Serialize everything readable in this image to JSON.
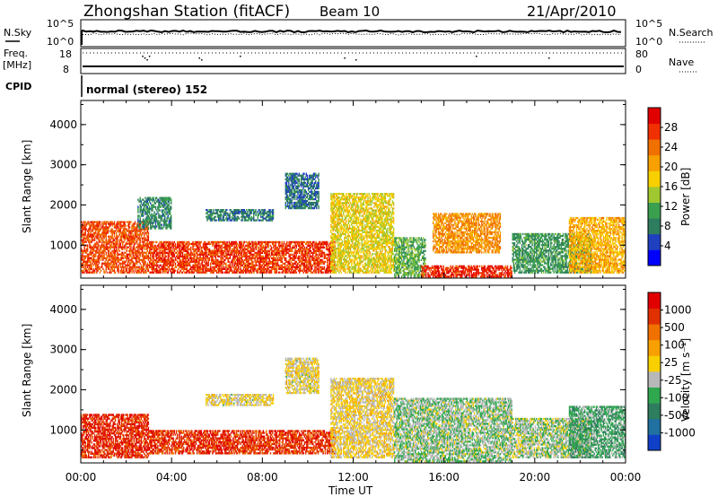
{
  "header": {
    "station": "Zhongshan Station (fitACF)",
    "beam": "Beam 10",
    "date": "21/Apr/2010"
  },
  "top_panels": {
    "nsky_label": "N.Sky",
    "nsky_ticks": [
      "10^5",
      "10^0"
    ],
    "nsearch_label": "N.Search",
    "nsearch_ticks": [
      "10^5",
      "10^0"
    ],
    "freq_label": "Freq.",
    "freq_unit": "[MHz]",
    "freq_ticks": [
      "18",
      "8"
    ],
    "nave_label": "Nave",
    "nave_ticks": [
      "80",
      "0"
    ],
    "cpid_label": "CPID",
    "cpid_text": "normal (stereo) 152"
  },
  "colors": {
    "power_scale": [
      "#0000ff",
      "#2040c0",
      "#2e7d5e",
      "#3aa050",
      "#a0c830",
      "#f8d000",
      "#f8a000",
      "#f07000",
      "#f03000",
      "#e00000"
    ],
    "velocity_scale": [
      "#1040c8",
      "#2070a0",
      "#2e7d5e",
      "#30a850",
      "#b8b8b8",
      "#f8d000",
      "#f8a000",
      "#f07000",
      "#e03000",
      "#e00000"
    ]
  },
  "chart_data": [
    {
      "type": "heatmap",
      "name": "power",
      "ylabel": "Slant Range [km]",
      "yticks": [
        "1000",
        "2000",
        "3000",
        "4000"
      ],
      "ylim": [
        180,
        4600
      ],
      "xlim": [
        0,
        24
      ],
      "colorbar_label": "Power [dB]",
      "colorbar_ticks": [
        "4",
        "8",
        "12",
        "16",
        "20",
        "24",
        "28"
      ],
      "colorbar_range": [
        0,
        32
      ],
      "regions": [
        {
          "t": [
            0.0,
            3.0
          ],
          "r": [
            300,
            1600
          ],
          "level": 26
        },
        {
          "t": [
            3.0,
            11.2
          ],
          "r": [
            300,
            1100
          ],
          "level": 27
        },
        {
          "t": [
            11.0,
            13.8
          ],
          "r": [
            300,
            2300
          ],
          "level": 17
        },
        {
          "t": [
            13.8,
            15.2
          ],
          "r": [
            200,
            1200
          ],
          "level": 12
        },
        {
          "t": [
            15.0,
            19.0
          ],
          "r": [
            200,
            500
          ],
          "level": 28
        },
        {
          "t": [
            15.5,
            18.5
          ],
          "r": [
            800,
            1800
          ],
          "level": 22
        },
        {
          "t": [
            19.0,
            22.5
          ],
          "r": [
            300,
            1300
          ],
          "level": 10
        },
        {
          "t": [
            21.5,
            24.0
          ],
          "r": [
            300,
            1700
          ],
          "level": 20
        },
        {
          "t": [
            9.0,
            10.5
          ],
          "r": [
            1900,
            2800
          ],
          "level": 7
        },
        {
          "t": [
            5.5,
            8.5
          ],
          "r": [
            1600,
            1900
          ],
          "level": 8
        },
        {
          "t": [
            2.5,
            4.0
          ],
          "r": [
            1400,
            2200
          ],
          "level": 9
        }
      ]
    },
    {
      "type": "heatmap",
      "name": "velocity",
      "ylabel": "Slant Range [km]",
      "yticks": [
        "1000",
        "2000",
        "3000",
        "4000"
      ],
      "ylim": [
        180,
        4600
      ],
      "xlim": [
        0,
        24
      ],
      "xlabel": "Time UT",
      "xticks": [
        "00:00",
        "04:00",
        "08:00",
        "12:00",
        "16:00",
        "20:00",
        "00:00"
      ],
      "colorbar_label": "Velocity [m s⁻¹]",
      "colorbar_ticks": [
        "1000",
        "500",
        "100",
        "25",
        "-25",
        "-100",
        "-500",
        "-1000"
      ],
      "colorbar_range": [
        -1200,
        1200
      ],
      "regions": [
        {
          "t": [
            0.0,
            3.0
          ],
          "r": [
            300,
            1400
          ],
          "level": 900
        },
        {
          "t": [
            3.0,
            11.2
          ],
          "r": [
            400,
            1000
          ],
          "level": 850
        },
        {
          "t": [
            11.0,
            13.8
          ],
          "r": [
            300,
            2300
          ],
          "level": 50
        },
        {
          "t": [
            13.8,
            19.0
          ],
          "r": [
            200,
            1800
          ],
          "level": -200
        },
        {
          "t": [
            19.0,
            22.5
          ],
          "r": [
            300,
            1300
          ],
          "level": -150
        },
        {
          "t": [
            21.5,
            24.0
          ],
          "r": [
            300,
            1600
          ],
          "level": -400
        },
        {
          "t": [
            9.0,
            10.5
          ],
          "r": [
            1900,
            2800
          ],
          "level": 10
        },
        {
          "t": [
            5.5,
            8.5
          ],
          "r": [
            1600,
            1900
          ],
          "level": 15
        }
      ]
    }
  ]
}
